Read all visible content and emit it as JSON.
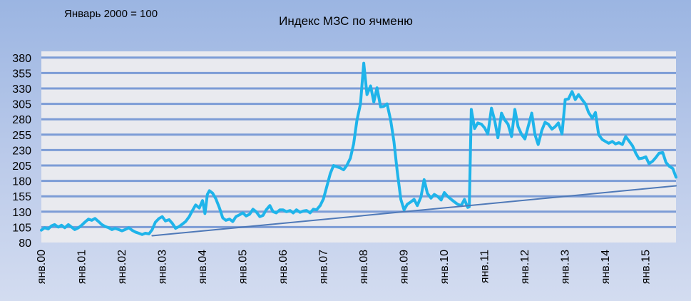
{
  "chart_data": {
    "type": "line",
    "title": "Индекс МЗС по ячменю",
    "subtitle": "Январь 2000 = 100",
    "xlabel": "",
    "ylabel": "",
    "xlim": [
      2000.0,
      2015.75
    ],
    "ylim": [
      80,
      380
    ],
    "grid": true,
    "legend": "none",
    "y_ticks": [
      80,
      105,
      130,
      155,
      180,
      205,
      230,
      255,
      280,
      305,
      330,
      355,
      380
    ],
    "x_ticks": [
      {
        "x": 2000,
        "label": "янв.00"
      },
      {
        "x": 2001,
        "label": "янв.01"
      },
      {
        "x": 2002,
        "label": "янв.02"
      },
      {
        "x": 2003,
        "label": "янв.03"
      },
      {
        "x": 2004,
        "label": "янв.04"
      },
      {
        "x": 2005,
        "label": "янв.05"
      },
      {
        "x": 2006,
        "label": "янв.06"
      },
      {
        "x": 2007,
        "label": "янв.07"
      },
      {
        "x": 2008,
        "label": "янв.08"
      },
      {
        "x": 2009,
        "label": "янв.09"
      },
      {
        "x": 2010,
        "label": "янв.10"
      },
      {
        "x": 2011,
        "label": "янв.11"
      },
      {
        "x": 2012,
        "label": "янв.12"
      },
      {
        "x": 2013,
        "label": "янв.13"
      },
      {
        "x": 2014,
        "label": "янв.14"
      },
      {
        "x": 2015,
        "label": "янв.15"
      }
    ],
    "colors": {
      "index": "#1fb4ea",
      "trend": "#4f79b8",
      "grid": "#7c9cd6",
      "plot_bg": "#e9eaef"
    },
    "series": [
      {
        "key": "index",
        "x": [
          2000.0,
          2000.08,
          2000.17,
          2000.25,
          2000.33,
          2000.42,
          2000.5,
          2000.58,
          2000.67,
          2000.75,
          2000.83,
          2000.92,
          2001.0,
          2001.08,
          2001.17,
          2001.25,
          2001.33,
          2001.42,
          2001.5,
          2001.58,
          2001.67,
          2001.75,
          2001.83,
          2001.92,
          2002.0,
          2002.08,
          2002.17,
          2002.25,
          2002.33,
          2002.42,
          2002.5,
          2002.58,
          2002.67,
          2002.75,
          2002.83,
          2002.92,
          2003.0,
          2003.08,
          2003.17,
          2003.25,
          2003.33,
          2003.42,
          2003.5,
          2003.58,
          2003.67,
          2003.75,
          2003.83,
          2003.92,
          2004.0,
          2004.06,
          2004.12,
          2004.17,
          2004.25,
          2004.33,
          2004.42,
          2004.5,
          2004.58,
          2004.67,
          2004.75,
          2004.83,
          2004.92,
          2005.0,
          2005.08,
          2005.17,
          2005.25,
          2005.33,
          2005.42,
          2005.5,
          2005.58,
          2005.67,
          2005.75,
          2005.83,
          2005.92,
          2006.0,
          2006.08,
          2006.17,
          2006.25,
          2006.33,
          2006.42,
          2006.5,
          2006.58,
          2006.67,
          2006.75,
          2006.83,
          2006.92,
          2007.0,
          2007.08,
          2007.17,
          2007.25,
          2007.33,
          2007.42,
          2007.5,
          2007.58,
          2007.67,
          2007.75,
          2007.83,
          2007.92,
          2008.0,
          2008.08,
          2008.17,
          2008.25,
          2008.33,
          2008.42,
          2008.5,
          2008.58,
          2008.67,
          2008.75,
          2008.83,
          2008.92,
          2009.0,
          2009.08,
          2009.17,
          2009.25,
          2009.33,
          2009.42,
          2009.5,
          2009.58,
          2009.67,
          2009.75,
          2009.83,
          2009.92,
          2010.0,
          2010.08,
          2010.17,
          2010.25,
          2010.33,
          2010.42,
          2010.5,
          2010.58,
          2010.62,
          2010.67,
          2010.75,
          2010.83,
          2010.92,
          2011.0,
          2011.08,
          2011.17,
          2011.25,
          2011.33,
          2011.42,
          2011.5,
          2011.58,
          2011.67,
          2011.75,
          2011.83,
          2011.92,
          2012.0,
          2012.08,
          2012.17,
          2012.25,
          2012.33,
          2012.42,
          2012.5,
          2012.58,
          2012.67,
          2012.75,
          2012.83,
          2012.92,
          2013.0,
          2013.08,
          2013.17,
          2013.25,
          2013.33,
          2013.42,
          2013.5,
          2013.58,
          2013.67,
          2013.75,
          2013.83,
          2013.92,
          2014.0,
          2014.08,
          2014.17,
          2014.25,
          2014.33,
          2014.42,
          2014.5,
          2014.58,
          2014.67,
          2014.75,
          2014.83,
          2014.92,
          2015.0,
          2015.08,
          2015.17,
          2015.25,
          2015.33,
          2015.42,
          2015.5,
          2015.58,
          2015.67,
          2015.75
        ],
        "values": [
          100,
          104,
          102,
          107,
          109,
          105,
          108,
          104,
          109,
          105,
          101,
          104,
          108,
          113,
          118,
          116,
          119,
          114,
          109,
          106,
          104,
          101,
          103,
          101,
          99,
          101,
          104,
          100,
          97,
          95,
          93,
          95,
          94,
          101,
          113,
          119,
          122,
          115,
          117,
          111,
          103,
          106,
          110,
          114,
          122,
          132,
          141,
          136,
          148,
          127,
          158,
          164,
          160,
          151,
          136,
          120,
          116,
          118,
          114,
          122,
          125,
          128,
          123,
          126,
          134,
          130,
          122,
          124,
          133,
          140,
          130,
          128,
          133,
          133,
          130,
          132,
          128,
          133,
          129,
          131,
          132,
          128,
          134,
          133,
          140,
          151,
          170,
          192,
          205,
          203,
          201,
          198,
          205,
          217,
          240,
          278,
          305,
          371,
          320,
          334,
          308,
          331,
          300,
          301,
          305,
          278,
          244,
          196,
          150,
          133,
          142,
          146,
          150,
          140,
          154,
          182,
          160,
          152,
          158,
          155,
          149,
          161,
          155,
          150,
          146,
          142,
          140,
          150,
          137,
          138,
          296,
          265,
          274,
          272,
          266,
          256,
          298,
          278,
          250,
          290,
          279,
          272,
          252,
          296,
          268,
          255,
          248,
          268,
          290,
          255,
          239,
          262,
          275,
          272,
          264,
          268,
          274,
          256,
          312,
          313,
          325,
          312,
          320,
          312,
          305,
          291,
          282,
          291,
          255,
          247,
          244,
          241,
          244,
          240,
          242,
          239,
          252,
          245,
          237,
          225,
          216,
          217,
          219,
          208,
          212,
          218,
          225,
          226,
          210,
          204,
          200,
          186
        ]
      },
      {
        "key": "trend",
        "x": [
          2002.75,
          2015.75
        ],
        "values": [
          91,
          172
        ]
      }
    ]
  }
}
